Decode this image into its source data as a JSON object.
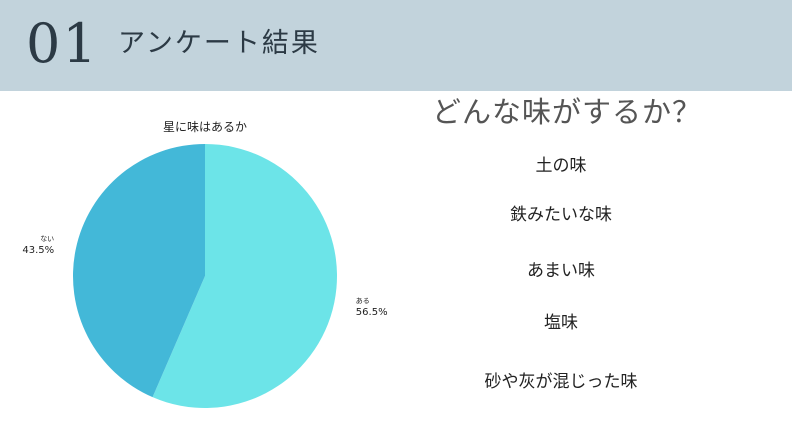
{
  "header": {
    "number": "01",
    "title": "アンケート結果"
  },
  "chart_data": {
    "type": "pie",
    "title": "星に味はあるか",
    "slices": [
      {
        "label": "ある",
        "value": 56.5,
        "display": "56.5%",
        "color": "#6ce4e8"
      },
      {
        "label": "ない",
        "value": 43.5,
        "display": "43.5%",
        "color": "#43b8d8"
      }
    ]
  },
  "question": "どんな味がするか？",
  "answers": [
    "土の味",
    "鉄みたいな味",
    "あまい味",
    "塩味",
    "砂や灰が混じった味"
  ]
}
